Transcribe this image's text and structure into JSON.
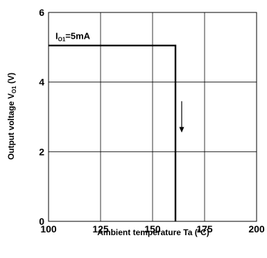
{
  "chart_data": {
    "type": "line",
    "xlabel": "Ambient temperature   Ta (ºC)",
    "ylabel": "Output voltage   V",
    "ylabel_sub": "O1",
    "ylabel_unit": " (V)",
    "xlim": [
      100,
      200
    ],
    "ylim": [
      0,
      6
    ],
    "x_ticks": [
      100,
      125,
      150,
      175,
      200
    ],
    "y_ticks": [
      0,
      2,
      4,
      6
    ],
    "x_tick_labels": [
      "100",
      "125",
      "150",
      "175",
      "200"
    ],
    "y_tick_labels": [
      "0",
      "2",
      "4",
      "6"
    ],
    "grid": true,
    "series": [
      {
        "name": "IO1=5mA",
        "x": [
          100,
          161,
          161
        ],
        "y": [
          5.05,
          5.05,
          0
        ]
      }
    ],
    "annotations": [
      {
        "text_main": "I",
        "text_sub": "O1",
        "text_rest": "=5mA",
        "x": 102,
        "y": 5.2
      },
      {
        "type": "arrow",
        "direction": "down",
        "x": 164,
        "y_from": 3.45,
        "y_to": 2.55
      }
    ],
    "colors": {
      "line": "#000000",
      "grid": "#000000",
      "background": "#ffffff"
    }
  }
}
